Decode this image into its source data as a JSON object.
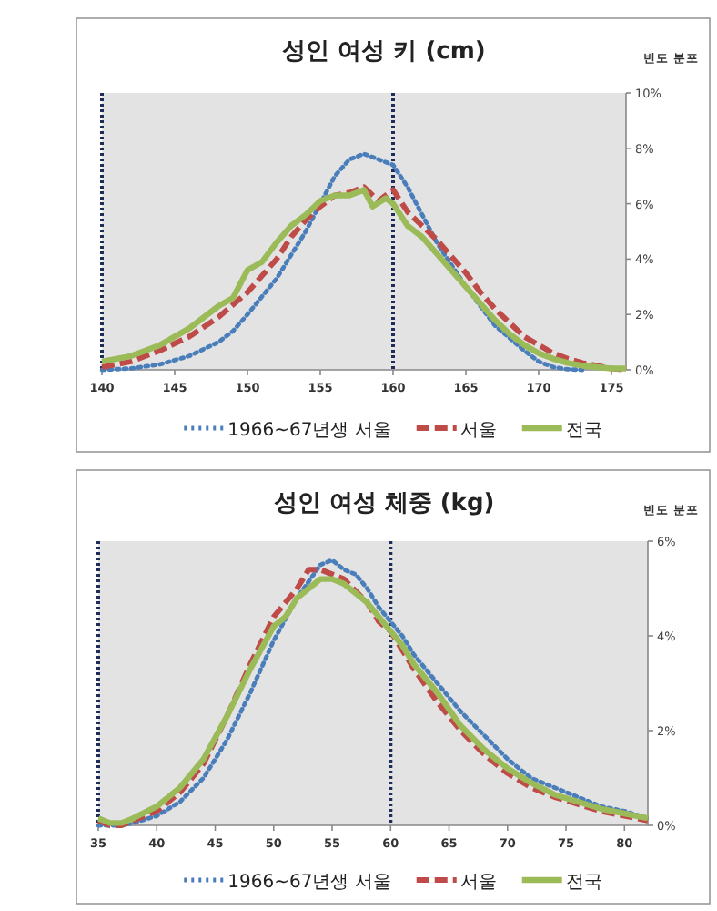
{
  "chart_data": [
    {
      "type": "line",
      "title": "성인 여성  키 (cm)",
      "ylabel": "빈도 분포",
      "xlim": [
        140,
        176
      ],
      "xticks": [
        140,
        145,
        150,
        155,
        160,
        165,
        170,
        175
      ],
      "ylim": [
        0,
        10
      ],
      "yticks": [
        {
          "value": 0,
          "label": "0%"
        },
        {
          "value": 2,
          "label": "2%"
        },
        {
          "value": 4,
          "label": "4%"
        },
        {
          "value": 6,
          "label": "6%"
        },
        {
          "value": 8,
          "label": "8%"
        },
        {
          "value": 10,
          "label": "10%"
        }
      ],
      "legend": "bottom",
      "grid": false,
      "ref_lines": [
        {
          "axis": "x",
          "value": 140,
          "color": "#1f2d5a",
          "line_style": "dotted"
        },
        {
          "axis": "x",
          "value": 160,
          "color": "#1f2d5a",
          "line_style": "dotted"
        }
      ],
      "series": [
        {
          "name": "1966~67년생 서울",
          "color": "#4a7ebb",
          "line_style": "dotted",
          "x": [
            140,
            142,
            144,
            146,
            148,
            149,
            150,
            152,
            154,
            155,
            156,
            157,
            158,
            159,
            160,
            161,
            162,
            163,
            165,
            167,
            169,
            170,
            171,
            172,
            173
          ],
          "values": [
            0,
            0.05,
            0.2,
            0.5,
            1.0,
            1.4,
            2.0,
            3.3,
            5.0,
            6.0,
            7.0,
            7.6,
            7.8,
            7.6,
            7.4,
            6.6,
            5.6,
            4.6,
            3.0,
            1.6,
            0.7,
            0.3,
            0.1,
            0.02,
            0
          ]
        },
        {
          "name": "서울",
          "color": "#be4b48",
          "line_style": "dashed",
          "x": [
            140,
            142,
            144,
            146,
            148,
            150,
            151,
            152,
            153,
            154,
            155,
            156,
            157,
            158,
            159,
            160,
            161,
            162,
            163,
            164,
            165,
            166,
            167,
            168,
            169,
            170,
            171,
            172,
            173,
            174,
            175,
            176
          ],
          "values": [
            0.1,
            0.3,
            0.7,
            1.2,
            1.9,
            2.8,
            3.4,
            4.0,
            4.8,
            5.4,
            5.9,
            6.3,
            6.4,
            6.6,
            6.1,
            6.5,
            5.7,
            5.2,
            4.7,
            4.1,
            3.5,
            2.8,
            2.2,
            1.7,
            1.2,
            0.9,
            0.6,
            0.4,
            0.25,
            0.15,
            0.05,
            0
          ]
        },
        {
          "name": "전국",
          "color": "#9bbb59",
          "line_style": "solid",
          "x": [
            140,
            142,
            144,
            146,
            148,
            149,
            150,
            151,
            152,
            153,
            154,
            155,
            156,
            157,
            158,
            158.6,
            159.5,
            160,
            161,
            162,
            163,
            164,
            165,
            166,
            167,
            168,
            169,
            170,
            171,
            172,
            173,
            174,
            175,
            176
          ],
          "values": [
            0.3,
            0.5,
            0.9,
            1.5,
            2.3,
            2.6,
            3.6,
            3.9,
            4.6,
            5.2,
            5.6,
            6.1,
            6.3,
            6.3,
            6.5,
            5.9,
            6.2,
            6.0,
            5.2,
            4.8,
            4.2,
            3.6,
            3.0,
            2.4,
            1.8,
            1.3,
            0.9,
            0.6,
            0.4,
            0.25,
            0.15,
            0.1,
            0.05,
            0.05
          ]
        }
      ]
    },
    {
      "type": "line",
      "title": "성인 여성  체중 (kg)",
      "ylabel": "빈도 분포",
      "xlim": [
        35,
        82
      ],
      "xticks": [
        35,
        40,
        45,
        50,
        55,
        60,
        65,
        70,
        75,
        80
      ],
      "ylim": [
        0,
        6
      ],
      "yticks": [
        {
          "value": 0,
          "label": "0%"
        },
        {
          "value": 2,
          "label": "2%"
        },
        {
          "value": 4,
          "label": "4%"
        },
        {
          "value": 6,
          "label": "6%"
        }
      ],
      "legend": "bottom",
      "grid": false,
      "ref_lines": [
        {
          "axis": "x",
          "value": 35,
          "color": "#1f2d5a",
          "line_style": "dotted"
        },
        {
          "axis": "x",
          "value": 60,
          "color": "#1f2d5a",
          "line_style": "dotted"
        }
      ],
      "series": [
        {
          "name": "1966~67년생 서울",
          "color": "#4a7ebb",
          "line_style": "dotted",
          "x": [
            35,
            37,
            38,
            40,
            42,
            44,
            46,
            48,
            50,
            52,
            54,
            55,
            56,
            57,
            58,
            59,
            60,
            61,
            62,
            64,
            66,
            68,
            70,
            72,
            74,
            76,
            78,
            80,
            82
          ],
          "values": [
            0,
            0,
            0.05,
            0.2,
            0.5,
            1.0,
            1.8,
            2.8,
            3.9,
            4.8,
            5.5,
            5.6,
            5.4,
            5.3,
            5.0,
            4.6,
            4.3,
            4.0,
            3.6,
            3.0,
            2.4,
            1.9,
            1.4,
            1.0,
            0.8,
            0.6,
            0.4,
            0.3,
            0.15
          ]
        },
        {
          "name": "서울",
          "color": "#be4b48",
          "line_style": "dashed",
          "x": [
            35,
            36,
            37,
            38,
            40,
            42,
            44,
            46,
            48,
            50,
            52,
            53,
            54,
            56,
            58,
            59,
            60,
            61,
            62,
            64,
            66,
            68,
            70,
            72,
            74,
            76,
            78,
            80,
            82
          ],
          "values": [
            0.1,
            0,
            0,
            0.1,
            0.3,
            0.7,
            1.3,
            2.3,
            3.4,
            4.4,
            5.0,
            5.4,
            5.4,
            5.2,
            4.7,
            4.3,
            4.1,
            3.7,
            3.3,
            2.6,
            2.0,
            1.5,
            1.1,
            0.8,
            0.6,
            0.45,
            0.3,
            0.2,
            0.1
          ]
        },
        {
          "name": "전국",
          "color": "#9bbb59",
          "line_style": "solid",
          "x": [
            35,
            36,
            37,
            38,
            40,
            42,
            44,
            46,
            48,
            50,
            51,
            52,
            54,
            55,
            56,
            58,
            59,
            60,
            61,
            62,
            64,
            66,
            68,
            70,
            72,
            74,
            76,
            78,
            80,
            82
          ],
          "values": [
            0.15,
            0.05,
            0.05,
            0.15,
            0.4,
            0.8,
            1.4,
            2.3,
            3.3,
            4.2,
            4.4,
            4.8,
            5.2,
            5.2,
            5.1,
            4.7,
            4.4,
            4.1,
            3.8,
            3.4,
            2.8,
            2.1,
            1.6,
            1.2,
            0.9,
            0.65,
            0.5,
            0.35,
            0.25,
            0.15
          ]
        }
      ]
    }
  ]
}
